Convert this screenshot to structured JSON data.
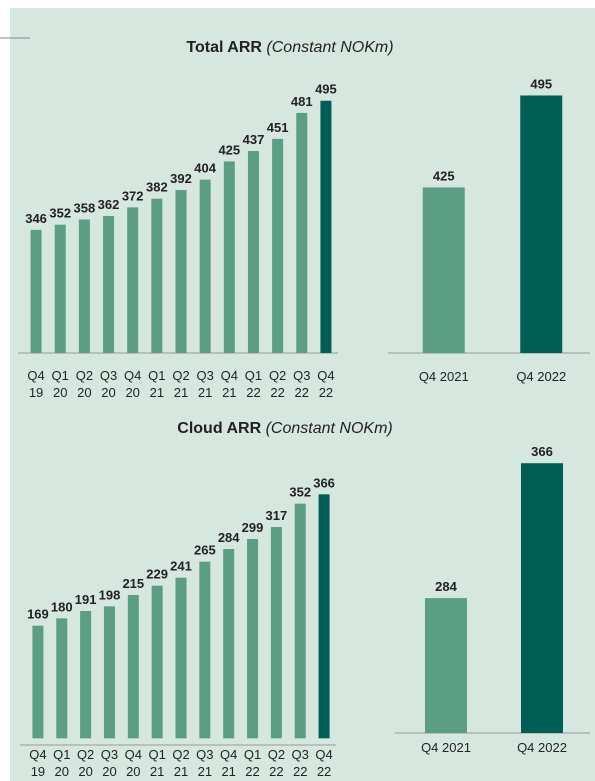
{
  "chart_data": [
    {
      "type": "bar",
      "title": "Total ARR",
      "subtitle": "(Constant NOKm)",
      "categories": [
        "Q4 19",
        "Q1 20",
        "Q2 20",
        "Q3 20",
        "Q4 20",
        "Q1 21",
        "Q2 21",
        "Q3 21",
        "Q4 21",
        "Q1 22",
        "Q2 22",
        "Q3 22",
        "Q4 22"
      ],
      "values": [
        346,
        352,
        358,
        362,
        372,
        382,
        392,
        404,
        425,
        437,
        451,
        481,
        495
      ],
      "colors": [
        "#5b9e85",
        "#5b9e85",
        "#5b9e85",
        "#5b9e85",
        "#5b9e85",
        "#5b9e85",
        "#5b9e85",
        "#5b9e85",
        "#5b9e85",
        "#5b9e85",
        "#5b9e85",
        "#5b9e85",
        "#005e56"
      ],
      "ylim": [
        204,
        542
      ]
    },
    {
      "type": "bar",
      "categories": [
        "Q4 2021",
        "Q4 2022"
      ],
      "values": [
        425,
        495
      ],
      "colors": [
        "#5b9e85",
        "#005e56"
      ],
      "ylim": [
        299,
        522
      ]
    },
    {
      "type": "bar",
      "title": "Cloud ARR",
      "subtitle": "(Constant NOKm)",
      "categories": [
        "Q4 19",
        "Q1 20",
        "Q2 20",
        "Q3 20",
        "Q4 20",
        "Q1 21",
        "Q2 21",
        "Q3 21",
        "Q4 21",
        "Q1 22",
        "Q2 22",
        "Q3 22",
        "Q4 22"
      ],
      "values": [
        169,
        180,
        191,
        198,
        215,
        229,
        241,
        265,
        284,
        299,
        317,
        352,
        366
      ],
      "colors": [
        "#5b9e85",
        "#5b9e85",
        "#5b9e85",
        "#5b9e85",
        "#5b9e85",
        "#5b9e85",
        "#5b9e85",
        "#5b9e85",
        "#5b9e85",
        "#5b9e85",
        "#5b9e85",
        "#5b9e85",
        "#005e56"
      ],
      "ylim": [
        -10,
        425
      ]
    },
    {
      "type": "bar",
      "categories": [
        "Q4 2021",
        "Q4 2022"
      ],
      "values": [
        284,
        366
      ],
      "colors": [
        "#5b9e85",
        "#005e56"
      ],
      "ylim": [
        202,
        371
      ]
    }
  ]
}
